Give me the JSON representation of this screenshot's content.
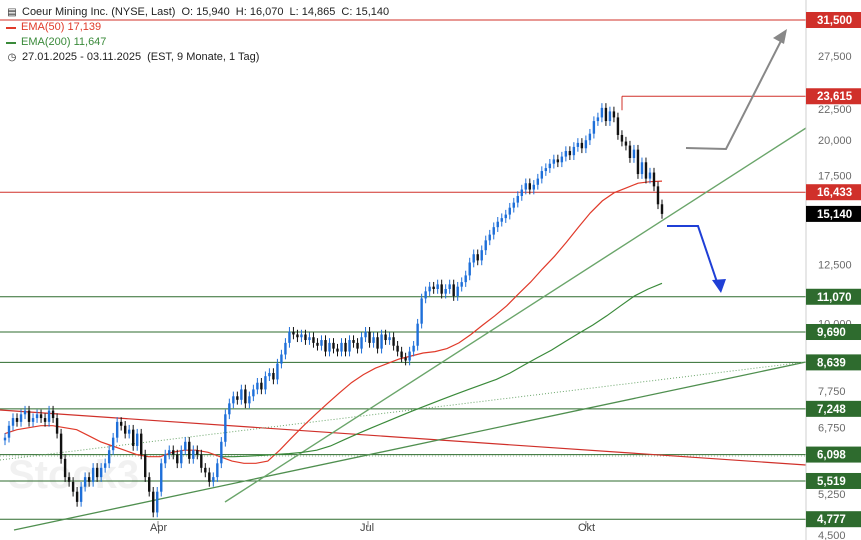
{
  "header": {
    "instrument": "Coeur Mining Inc. (NYSE, Last)",
    "ohlc": {
      "O": "15,940",
      "H": "16,070",
      "L": "14,865",
      "C": "15,140"
    },
    "indicators": [
      {
        "name": "EMA(50)",
        "value": "17,139",
        "color": "#e03a2a"
      },
      {
        "name": "EMA(200)",
        "value": "11,647",
        "color": "#3a8a3a"
      }
    ],
    "period": "27.01.2025 - 03.11.2025",
    "period_detail": "(EST, 9 Monate, 1 Tag)",
    "icons": [
      "candlestick-icon",
      "clock-icon"
    ]
  },
  "watermark": "Stock3",
  "colors": {
    "up": "#1e6fd9",
    "down": "#111111",
    "resistance": "#d0302a",
    "support": "#2e6b2e",
    "ema50": "#e03a2a",
    "ema200": "#3a8a3a",
    "trend": "#6aa56a",
    "last": "#000000"
  },
  "chart_data": {
    "type": "candlestick",
    "x_range": [
      "2025-01-27",
      "2025-11-03"
    ],
    "x_ticks": [
      "Apr",
      "Jul",
      "Okt"
    ],
    "y_scale": "log",
    "y_ticks": [
      "4,500",
      "5,250",
      "6,750",
      "7,750",
      "10,000",
      "12,500",
      "17,500",
      "20,000",
      "22,500",
      "27,500"
    ],
    "last_price": "15,140",
    "price_levels": [
      {
        "label": "31,500",
        "value": 31.5,
        "color": "#d0302a"
      },
      {
        "label": "23,615",
        "value": 23.615,
        "color": "#d0302a"
      },
      {
        "label": "16,433",
        "value": 16.433,
        "color": "#d0302a"
      },
      {
        "label": "11,070",
        "value": 11.07,
        "color": "#2e6b2e"
      },
      {
        "label": "9,690",
        "value": 9.69,
        "color": "#2e6b2e"
      },
      {
        "label": "8,639",
        "value": 8.639,
        "color": "#2e6b2e"
      },
      {
        "label": "7,248",
        "value": 7.248,
        "color": "#2e6b2e"
      },
      {
        "label": "6,098",
        "value": 6.098,
        "color": "#2e6b2e"
      },
      {
        "label": "5,519",
        "value": 5.519,
        "color": "#2e6b2e"
      },
      {
        "label": "4,777",
        "value": 4.777,
        "color": "#2e6b2e"
      }
    ],
    "closes": [
      6.5,
      6.8,
      7.0,
      6.9,
      7.1,
      7.2,
      6.9,
      7.0,
      7.1,
      7.0,
      6.9,
      7.2,
      7.0,
      6.6,
      6.0,
      5.6,
      5.5,
      5.3,
      5.1,
      5.4,
      5.6,
      5.5,
      5.8,
      5.6,
      5.8,
      5.9,
      6.2,
      6.5,
      6.9,
      6.8,
      6.6,
      6.7,
      6.3,
      6.6,
      6.1,
      5.6,
      5.3,
      4.9,
      5.3,
      5.9,
      6.1,
      6.2,
      6.1,
      5.9,
      6.2,
      6.4,
      6.0,
      6.2,
      6.1,
      5.8,
      5.7,
      5.5,
      5.6,
      5.9,
      6.4,
      7.1,
      7.4,
      7.6,
      7.5,
      7.8,
      7.4,
      7.6,
      7.8,
      8.0,
      7.8,
      8.2,
      8.3,
      8.1,
      8.6,
      8.9,
      9.3,
      9.7,
      9.6,
      9.5,
      9.6,
      9.4,
      9.5,
      9.3,
      9.2,
      9.4,
      9.0,
      9.3,
      9.1,
      9.0,
      9.3,
      9.0,
      9.4,
      9.3,
      9.1,
      9.5,
      9.7,
      9.3,
      9.5,
      9.1,
      9.6,
      9.4,
      9.5,
      9.2,
      9.0,
      8.8,
      8.7,
      9.0,
      9.2,
      10.0,
      11.0,
      11.3,
      11.5,
      11.4,
      11.6,
      11.2,
      11.4,
      11.6,
      11.1,
      11.5,
      11.7,
      12.0,
      12.6,
      13.0,
      12.7,
      13.2,
      13.7,
      14.0,
      14.4,
      14.7,
      14.9,
      15.1,
      15.5,
      15.8,
      16.2,
      16.6,
      17.0,
      16.6,
      16.9,
      17.3,
      17.8,
      18.0,
      18.3,
      18.6,
      18.4,
      18.8,
      19.2,
      18.9,
      19.5,
      19.8,
      19.4,
      20.0,
      20.5,
      21.5,
      21.8,
      22.6,
      21.5,
      22.3,
      21.8,
      20.4,
      19.9,
      19.6,
      18.7,
      19.3,
      17.6,
      18.4,
      17.3,
      17.7,
      16.8,
      15.7,
      15.14
    ],
    "ema50": [
      6.6,
      6.7,
      6.75,
      6.8,
      6.8,
      6.75,
      6.7,
      6.55,
      6.4,
      6.3,
      6.2,
      6.1,
      6.05,
      6.05,
      6.15,
      6.2,
      6.2,
      6.15,
      6.05,
      5.95,
      5.9,
      5.9,
      5.95,
      6.2,
      6.5,
      6.8,
      7.1,
      7.4,
      7.7,
      8.0,
      8.25,
      8.45,
      8.6,
      8.75,
      8.85,
      8.95,
      9.0,
      9.1,
      9.3,
      9.6,
      9.95,
      10.3,
      10.7,
      11.2,
      11.7,
      12.3,
      12.9,
      13.6,
      14.4,
      15.2,
      15.9,
      16.4,
      16.7,
      17.0,
      17.1,
      17.14
    ],
    "ema200": [
      6.05,
      6.05,
      6.06,
      6.08,
      6.1,
      6.12,
      6.15,
      6.2,
      6.3,
      6.45,
      6.6,
      6.75,
      6.9,
      7.05,
      7.2,
      7.35,
      7.5,
      7.65,
      7.8,
      7.95,
      8.1,
      8.3,
      8.55,
      8.8,
      9.05,
      9.35,
      9.65,
      9.95,
      10.3,
      10.7,
      11.1,
      11.4,
      11.647
    ],
    "annotations": [
      {
        "type": "scenario-up",
        "color": "#888888"
      },
      {
        "type": "scenario-down",
        "color": "#1f3fd6"
      }
    ]
  }
}
